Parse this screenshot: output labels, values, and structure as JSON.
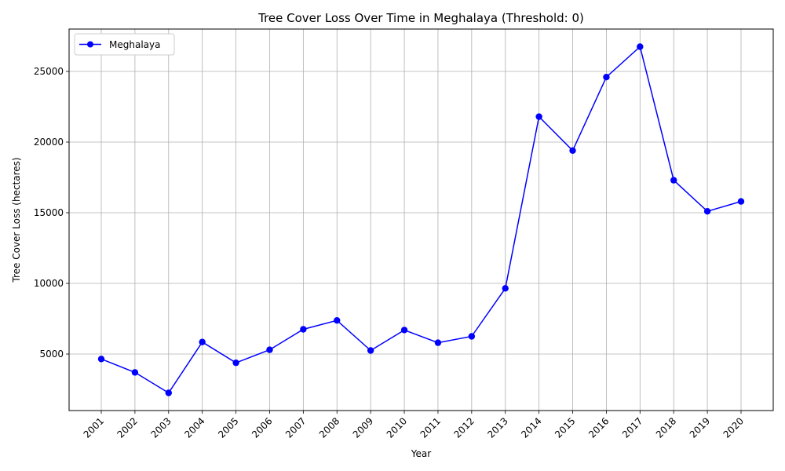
{
  "chart_data": {
    "type": "line",
    "title": "Tree Cover Loss Over Time in Meghalaya (Threshold: 0)",
    "xlabel": "Year",
    "ylabel": "Tree Cover Loss (hectares)",
    "categories": [
      "2001",
      "2002",
      "2003",
      "2004",
      "2005",
      "2006",
      "2007",
      "2008",
      "2009",
      "2010",
      "2011",
      "2012",
      "2013",
      "2014",
      "2015",
      "2016",
      "2017",
      "2018",
      "2019",
      "2020"
    ],
    "series": [
      {
        "name": "Meghalaya",
        "color": "#0000ff",
        "marker": "circle",
        "values": [
          4650,
          3700,
          2250,
          5850,
          4380,
          5300,
          6750,
          7380,
          5250,
          6700,
          5800,
          6250,
          9650,
          21800,
          19400,
          24600,
          26750,
          17300,
          15100,
          15800
        ]
      }
    ],
    "yticks": [
      5000,
      10000,
      15000,
      20000,
      25000
    ],
    "ylim": [
      1000,
      28000
    ],
    "grid": true,
    "legend_position": "top-left"
  }
}
